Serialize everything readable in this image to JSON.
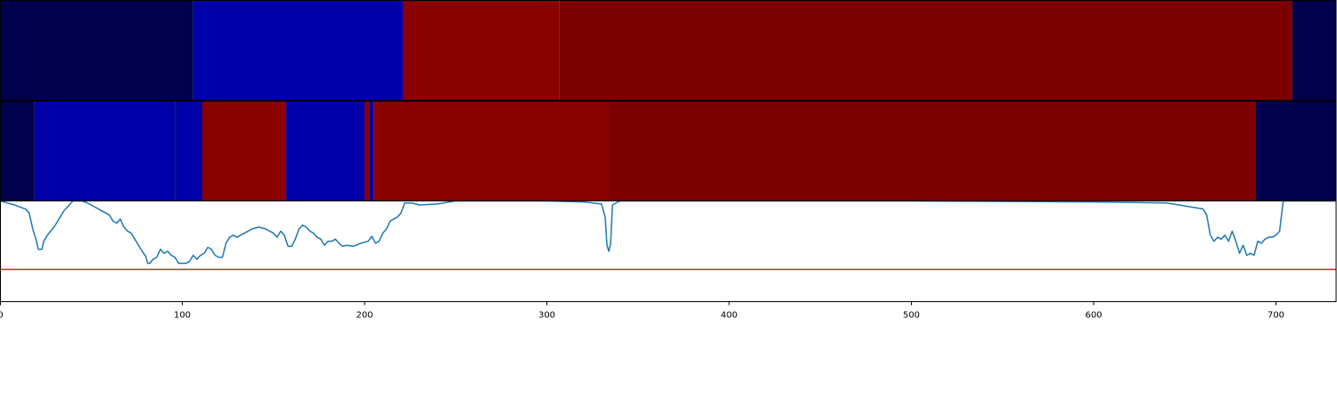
{
  "chart_data": [
    {
      "type": "heatmap",
      "title": "",
      "xlim": [
        0,
        733
      ],
      "colors": {
        "dark_navy": "#00004c",
        "blue": "#0000aa",
        "red": "#880000",
        "dark_red": "#7c0000"
      },
      "segments": [
        {
          "start": 0,
          "end": 106,
          "color": "#00004c"
        },
        {
          "start": 106,
          "end": 221,
          "color": "#0000aa"
        },
        {
          "start": 221,
          "end": 307,
          "color": "#880000"
        },
        {
          "start": 307,
          "end": 709,
          "color": "#7c0000"
        },
        {
          "start": 709,
          "end": 733,
          "color": "#00004c"
        }
      ]
    },
    {
      "type": "heatmap",
      "title": "",
      "xlim": [
        0,
        733
      ],
      "segments": [
        {
          "start": 0,
          "end": 19,
          "color": "#00004c"
        },
        {
          "start": 19,
          "end": 96,
          "color": "#0000aa"
        },
        {
          "start": 96,
          "end": 96.6,
          "color": "#00004c"
        },
        {
          "start": 96.6,
          "end": 111,
          "color": "#0000aa"
        },
        {
          "start": 111,
          "end": 157,
          "color": "#880000"
        },
        {
          "start": 157,
          "end": 200,
          "color": "#0000aa"
        },
        {
          "start": 200,
          "end": 202.5,
          "color": "#880000"
        },
        {
          "start": 202.5,
          "end": 205,
          "color": "#0000aa"
        },
        {
          "start": 205,
          "end": 334,
          "color": "#880000"
        },
        {
          "start": 334,
          "end": 689,
          "color": "#7c0000"
        },
        {
          "start": 689,
          "end": 733,
          "color": "#00004c"
        }
      ]
    },
    {
      "type": "line",
      "title": "",
      "xlabel": "",
      "ylabel": "",
      "xlim": [
        0,
        733
      ],
      "ylim": [
        0,
        1
      ],
      "xticks": [
        "0",
        "100",
        "200",
        "300",
        "400",
        "500",
        "600",
        "700"
      ],
      "xtick_values": [
        0,
        100,
        200,
        300,
        400,
        500,
        600,
        700
      ],
      "line_color": "#1f77b4",
      "threshold": {
        "value": 0.32,
        "color": "#d62728"
      },
      "x": [
        0,
        8,
        14,
        16,
        18,
        20,
        21,
        23,
        24,
        26,
        30,
        35,
        40,
        45,
        48,
        52,
        56,
        58,
        60,
        62,
        64,
        66,
        68,
        70,
        72,
        74,
        76,
        78,
        80,
        81,
        82,
        84,
        86,
        88,
        90,
        92,
        94,
        96,
        98,
        100,
        102,
        104,
        106,
        108,
        110,
        112,
        114,
        116,
        118,
        120,
        122,
        124,
        126,
        128,
        130,
        134,
        138,
        142,
        146,
        150,
        152,
        154,
        156,
        158,
        160,
        162,
        164,
        166,
        168,
        170,
        172,
        174,
        176,
        178,
        180,
        182,
        184,
        186,
        188,
        190,
        194,
        198,
        202,
        204,
        206,
        208,
        210,
        212,
        214,
        216,
        218,
        220,
        222,
        226,
        230,
        240,
        250,
        260,
        280,
        300,
        320,
        330,
        332,
        333,
        334,
        335,
        336,
        338,
        340,
        342,
        346,
        360,
        400,
        500,
        600,
        640,
        650,
        660,
        662,
        664,
        666,
        668,
        670,
        672,
        674,
        676,
        678,
        680,
        682,
        684,
        686,
        688,
        690,
        692,
        694,
        696,
        698,
        700,
        702,
        704,
        706,
        710,
        733
      ],
      "y": [
        1.0,
        0.96,
        0.92,
        0.88,
        0.72,
        0.6,
        0.52,
        0.52,
        0.6,
        0.66,
        0.75,
        0.9,
        1.0,
        1.0,
        0.98,
        0.94,
        0.9,
        0.88,
        0.86,
        0.8,
        0.78,
        0.82,
        0.74,
        0.7,
        0.68,
        0.62,
        0.56,
        0.5,
        0.45,
        0.38,
        0.38,
        0.42,
        0.44,
        0.52,
        0.48,
        0.5,
        0.46,
        0.44,
        0.38,
        0.38,
        0.38,
        0.4,
        0.46,
        0.42,
        0.46,
        0.48,
        0.54,
        0.52,
        0.46,
        0.44,
        0.44,
        0.58,
        0.64,
        0.66,
        0.64,
        0.68,
        0.72,
        0.74,
        0.72,
        0.68,
        0.64,
        0.7,
        0.66,
        0.55,
        0.55,
        0.62,
        0.72,
        0.76,
        0.74,
        0.7,
        0.68,
        0.64,
        0.62,
        0.56,
        0.6,
        0.6,
        0.62,
        0.58,
        0.55,
        0.56,
        0.55,
        0.58,
        0.6,
        0.65,
        0.58,
        0.6,
        0.68,
        0.72,
        0.8,
        0.82,
        0.84,
        0.88,
        0.98,
        0.98,
        0.96,
        0.97,
        1.0,
        1.0,
        1.0,
        1.0,
        0.99,
        0.97,
        0.84,
        0.56,
        0.5,
        0.58,
        0.96,
        0.98,
        1.0,
        1.0,
        1.0,
        1.0,
        1.0,
        1.0,
        0.99,
        0.98,
        0.95,
        0.92,
        0.86,
        0.66,
        0.6,
        0.64,
        0.62,
        0.66,
        0.6,
        0.7,
        0.6,
        0.48,
        0.56,
        0.46,
        0.48,
        0.46,
        0.6,
        0.58,
        0.62,
        0.64,
        0.64,
        0.66,
        0.7,
        1.0,
        1.0,
        1.0,
        1.0
      ]
    }
  ]
}
